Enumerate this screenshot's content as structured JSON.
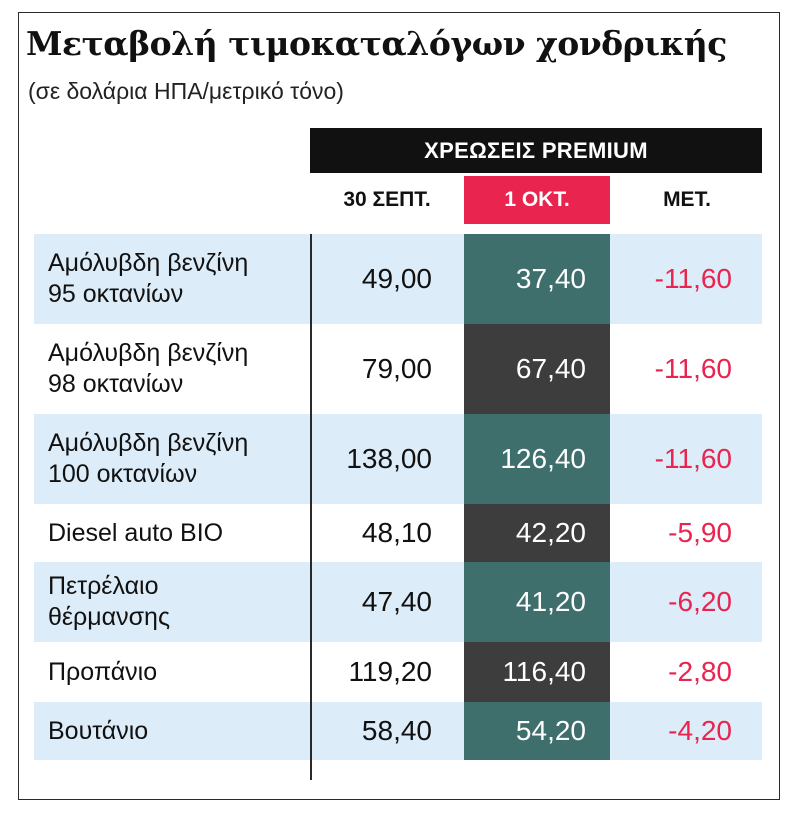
{
  "title": "Μεταβολή τιμοκαταλόγων χονδρικής",
  "subtitle": "(σε δολάρια ΗΠΑ/μετρικό τόνο)",
  "group_header": "ΧΡΕΩΣΕΙΣ PREMIUM",
  "colors": {
    "accent_red": "#e8244f",
    "teal_cell": "#3e6f6c",
    "dark_cell": "#3d3d3d",
    "row_shade": "#dcecf8"
  },
  "chart_data": {
    "type": "table",
    "columns": [
      "30 ΣΕΠΤ.",
      "1 ΟΚΤ.",
      "ΜΕΤ."
    ],
    "rows": [
      {
        "label_lines": [
          "Αμόλυβδη βενζίνη",
          "95 οκτανίων"
        ],
        "values": [
          "49,00",
          "37,40",
          "-11,60"
        ]
      },
      {
        "label_lines": [
          "Αμόλυβδη βενζίνη",
          "98 οκτανίων"
        ],
        "values": [
          "79,00",
          "67,40",
          "-11,60"
        ]
      },
      {
        "label_lines": [
          "Αμόλυβδη βενζίνη",
          "100 οκτανίων"
        ],
        "values": [
          "138,00",
          "126,40",
          "-11,60"
        ]
      },
      {
        "label_lines": [
          "Diesel auto BIO"
        ],
        "values": [
          "48,10",
          "42,20",
          "-5,90"
        ]
      },
      {
        "label_lines": [
          "Πετρέλαιο",
          "θέρμανσης"
        ],
        "values": [
          "47,40",
          "41,20",
          "-6,20"
        ]
      },
      {
        "label_lines": [
          "Προπάνιο"
        ],
        "values": [
          "119,20",
          "116,40",
          "-2,80"
        ]
      },
      {
        "label_lines": [
          "Βουτάνιο"
        ],
        "values": [
          "58,40",
          "54,20",
          "-4,20"
        ]
      }
    ]
  }
}
